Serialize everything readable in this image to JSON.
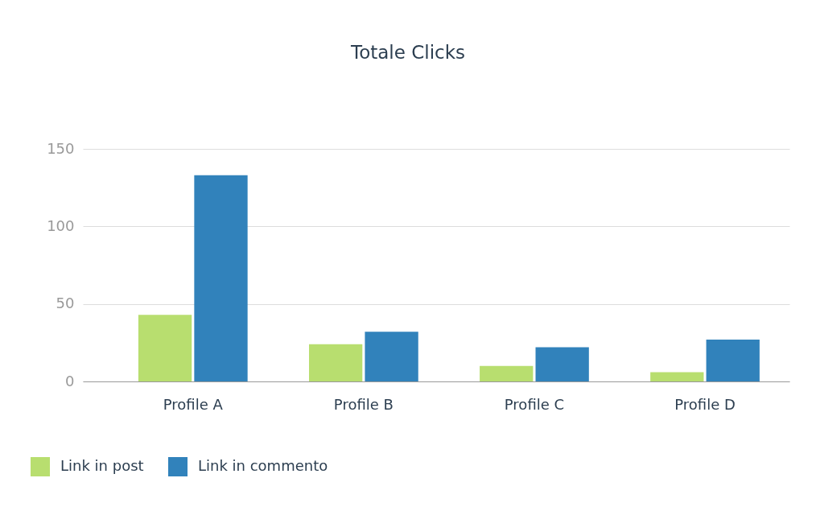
{
  "chart_data": {
    "type": "bar",
    "title": "Totale Clicks",
    "categories": [
      "Profile A",
      "Profile B",
      "Profile C",
      "Profile D"
    ],
    "series": [
      {
        "name": "Link in post",
        "color": "#b8de6f",
        "values": [
          43,
          24,
          10,
          6
        ]
      },
      {
        "name": "Link in commento",
        "color": "#3182bb",
        "values": [
          133,
          32,
          22,
          27
        ]
      }
    ],
    "ylim": [
      0,
      150
    ],
    "yticks": [
      0,
      50,
      100,
      150
    ],
    "grid": "y",
    "legend": "bottom"
  }
}
